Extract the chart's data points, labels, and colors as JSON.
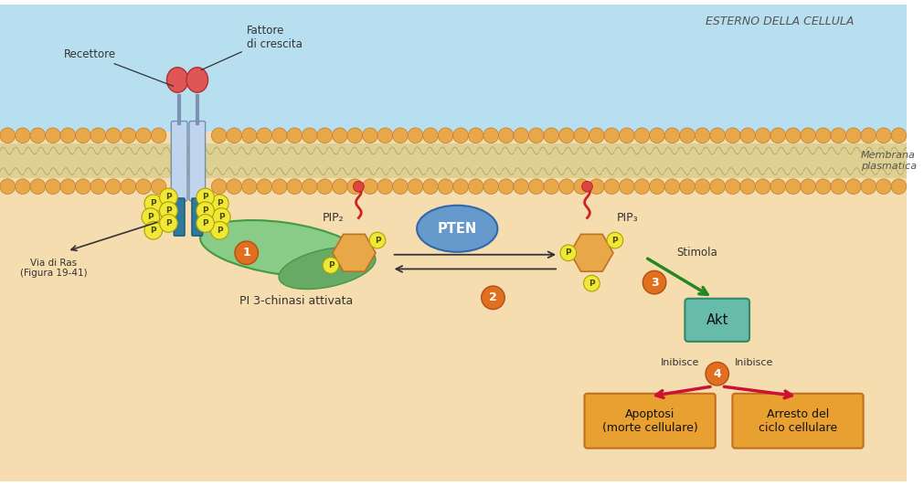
{
  "bg_top_color": "#b8dff0",
  "bg_bottom_color": "#f5ddb0",
  "membrane_lipid_color": "#e8a84a",
  "membrane_lipid_edge": "#c07830",
  "membrane_inner_color": "#ddd090",
  "receptor_tm_color": "#c0d4ee",
  "receptor_tm_edge": "#7090b0",
  "receptor_cyto_color": "#2d7a9a",
  "receptor_cyto_edge": "#1a5a7a",
  "receptor_head_color": "#e05555",
  "receptor_head_edge": "#b03030",
  "receptor_neck_color": "#8090b0",
  "P_circle_color": "#f0e838",
  "P_circle_edge": "#b0a000",
  "P_text_color": "#4a4a00",
  "pip_body_color": "#e8a84a",
  "pip_body_edge": "#c07020",
  "pi3k_color1": "#88cc88",
  "pi3k_color2": "#66aa66",
  "pi3k_edge": "#449944",
  "pten_color": "#6699cc",
  "pten_edge": "#3366aa",
  "akt_color": "#66bbaa",
  "akt_edge": "#338866",
  "step_circle_color": "#e07020",
  "step_circle_edge": "#b05010",
  "step_text_color": "#ffffff",
  "arrow_black": "#333333",
  "arrow_green": "#228822",
  "arrow_red": "#cc1133",
  "box_color": "#e8a030",
  "box_edge": "#c07020",
  "box_text_color": "#111111",
  "label_dark": "#333333",
  "label_gray": "#555555",
  "red_tail_color": "#cc2222",
  "red_bead_color": "#dd4444",
  "esterno_text": "ESTERNO DELLA CELLULA",
  "membrana_text": "Membrana\nplasmatica",
  "fattore_text": "Fattore\ndi crescita",
  "recettore_text": "Recettore",
  "pip2_text": "PIP₂",
  "pip3_text": "PIP₃",
  "pten_text": "PTEN",
  "pi3k_text": "PI 3-chinasi attivata",
  "akt_text": "Akt",
  "stimola_text": "Stimola",
  "inibisce_text": "Inibisce",
  "apoptosi_text": "Apoptosi\n(morte cellulare)",
  "arresto_text": "Arresto del\nciclo cellulare",
  "via_ras_text": "Via di Ras\n(Figura 19-41)"
}
